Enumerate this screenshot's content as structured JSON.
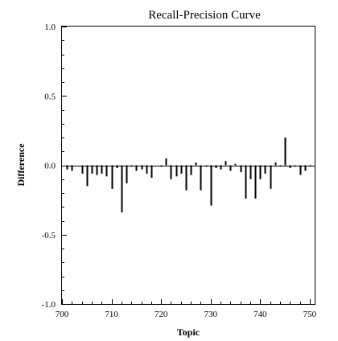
{
  "chart_data": {
    "type": "bar",
    "title": "Recall-Precision Curve",
    "xlabel": "Topic",
    "ylabel": "Difference",
    "xlim": [
      700,
      751
    ],
    "ylim": [
      -1.0,
      1.0
    ],
    "grid": false,
    "legend": "none",
    "x_ticks": [
      700,
      710,
      720,
      730,
      740,
      750
    ],
    "x_tick_labels": [
      "700",
      "710",
      "720",
      "730",
      "740",
      "750"
    ],
    "y_ticks": [
      1.0,
      0.5,
      0.0,
      -0.5,
      -1.0
    ],
    "y_tick_labels": [
      "1.0",
      "0.5",
      "0.0",
      "-0.5",
      "-1.0"
    ],
    "x": [
      701,
      702,
      703,
      704,
      705,
      706,
      707,
      708,
      709,
      710,
      711,
      712,
      713,
      714,
      715,
      716,
      717,
      718,
      719,
      720,
      721,
      722,
      723,
      724,
      725,
      726,
      727,
      728,
      729,
      730,
      731,
      732,
      733,
      734,
      735,
      736,
      737,
      738,
      739,
      740,
      741,
      742,
      743,
      744,
      745,
      746,
      747,
      748,
      749,
      750
    ],
    "values": [
      -0.03,
      -0.04,
      0.0,
      -0.06,
      -0.15,
      -0.06,
      -0.07,
      -0.06,
      -0.08,
      -0.17,
      -0.02,
      -0.34,
      -0.13,
      -0.01,
      -0.04,
      -0.03,
      -0.06,
      -0.09,
      0.0,
      -0.01,
      0.05,
      -0.1,
      -0.08,
      -0.06,
      -0.18,
      -0.07,
      0.02,
      -0.18,
      -0.01,
      -0.29,
      -0.02,
      -0.03,
      0.03,
      -0.04,
      0.01,
      -0.05,
      -0.24,
      -0.1,
      -0.24,
      -0.1,
      -0.06,
      -0.17,
      0.02,
      -0.01,
      0.2,
      -0.02,
      -0.01,
      -0.07,
      -0.04,
      -0.01
    ],
    "bar_color": "#000000"
  }
}
